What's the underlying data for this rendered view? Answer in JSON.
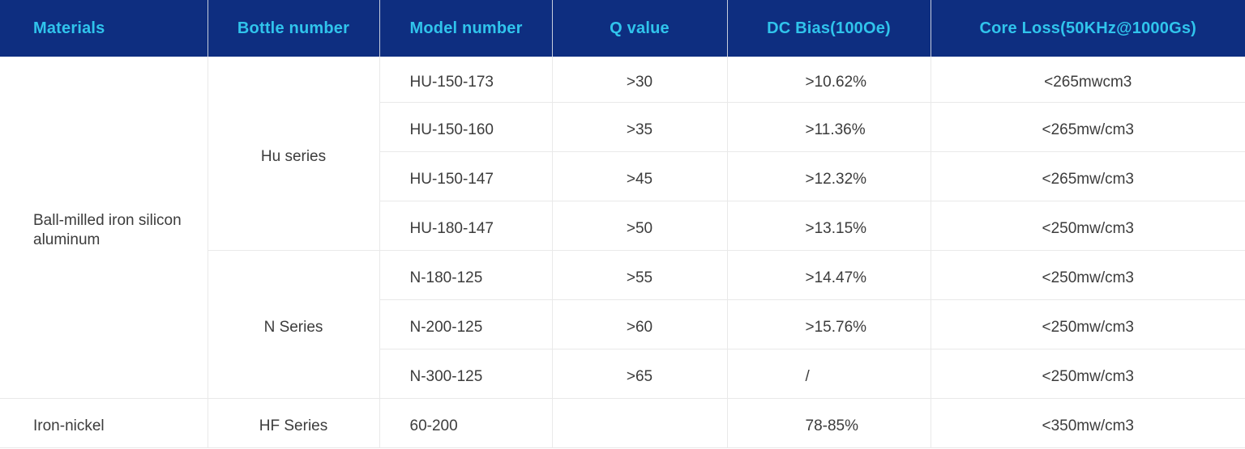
{
  "colors": {
    "header-bg": "#0e2e80",
    "header-text": "#30c4ec",
    "header-grid": "#c7cedd",
    "body-text": "#3c3c3c",
    "grid": "#e9e9e9",
    "bg": "#ffffff"
  },
  "table": {
    "columns": [
      {
        "key": "materials",
        "label": "Materials"
      },
      {
        "key": "bottle",
        "label": "Bottle number"
      },
      {
        "key": "model",
        "label": "Model number"
      },
      {
        "key": "q",
        "label": "Q value"
      },
      {
        "key": "dc_bias",
        "label": "DC Bias(100Oe)"
      },
      {
        "key": "core_loss",
        "label": "Core Loss(50KHz@1000Gs)"
      }
    ],
    "rows": [
      {
        "cells": [
          {
            "col": "materials",
            "text": "Ball-milled iron silicon aluminum",
            "rowspan": 7
          },
          {
            "col": "bottle",
            "text": "Hu series",
            "rowspan": 4
          },
          {
            "col": "model",
            "text": "HU-150-173"
          },
          {
            "col": "q",
            "text": ">30"
          },
          {
            "col": "dc_bias",
            "text": ">10.62%"
          },
          {
            "col": "core_loss",
            "text": "<265mwcm3"
          }
        ]
      },
      {
        "cells": [
          {
            "col": "model",
            "text": "HU-150-160"
          },
          {
            "col": "q",
            "text": ">35"
          },
          {
            "col": "dc_bias",
            "text": ">11.36%"
          },
          {
            "col": "core_loss",
            "text": "<265mw/cm3"
          }
        ]
      },
      {
        "cells": [
          {
            "col": "model",
            "text": "HU-150-147"
          },
          {
            "col": "q",
            "text": ">45"
          },
          {
            "col": "dc_bias",
            "text": ">12.32%"
          },
          {
            "col": "core_loss",
            "text": "<265mw/cm3"
          }
        ]
      },
      {
        "cells": [
          {
            "col": "model",
            "text": "HU-180-147"
          },
          {
            "col": "q",
            "text": ">50"
          },
          {
            "col": "dc_bias",
            "text": ">13.15%"
          },
          {
            "col": "core_loss",
            "text": "<250mw/cm3"
          }
        ]
      },
      {
        "cells": [
          {
            "col": "bottle",
            "text": "N Series",
            "rowspan": 3
          },
          {
            "col": "model",
            "text": "N-180-125"
          },
          {
            "col": "q",
            "text": ">55"
          },
          {
            "col": "dc_bias",
            "text": ">14.47%"
          },
          {
            "col": "core_loss",
            "text": "<250mw/cm3"
          }
        ]
      },
      {
        "cells": [
          {
            "col": "model",
            "text": "N-200-125"
          },
          {
            "col": "q",
            "text": ">60"
          },
          {
            "col": "dc_bias",
            "text": ">15.76%"
          },
          {
            "col": "core_loss",
            "text": "<250mw/cm3"
          }
        ]
      },
      {
        "cells": [
          {
            "col": "model",
            "text": "N-300-125"
          },
          {
            "col": "q",
            "text": ">65"
          },
          {
            "col": "dc_bias",
            "text": "/"
          },
          {
            "col": "core_loss",
            "text": "<250mw/cm3"
          }
        ]
      },
      {
        "cells": [
          {
            "col": "materials",
            "text": "Iron-nickel"
          },
          {
            "col": "bottle",
            "text": "HF Series"
          },
          {
            "col": "model",
            "text": "60-200"
          },
          {
            "col": "q",
            "text": ""
          },
          {
            "col": "dc_bias",
            "text": "78-85%"
          },
          {
            "col": "core_loss",
            "text": "<350mw/cm3"
          }
        ]
      }
    ]
  }
}
